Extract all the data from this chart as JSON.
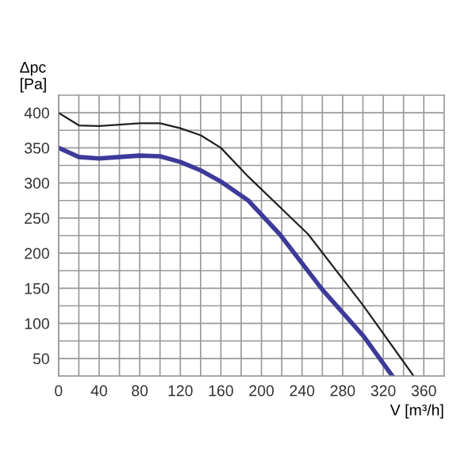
{
  "chart_data": {
    "type": "line",
    "ylabel": "Δpc\n[Pa]",
    "xlabel": "V [m³/h]",
    "series": [
      {
        "color": "#222222",
        "x": [
          0,
          20,
          40,
          60,
          80,
          100,
          120,
          140,
          160,
          187,
          246,
          300,
          350
        ],
        "values": [
          400,
          382,
          381,
          383,
          385,
          385,
          378,
          368,
          350,
          309,
          227,
          126,
          25
        ]
      },
      {
        "color": "#3d3a9a",
        "x": [
          0,
          20,
          40,
          60,
          80,
          100,
          120,
          140,
          160,
          187,
          218,
          260,
          301,
          329
        ],
        "values": [
          350,
          337,
          335,
          337,
          339,
          338,
          330,
          318,
          302,
          275,
          227,
          148,
          81,
          25
        ]
      }
    ],
    "xlim": [
      0,
      380
    ],
    "ylim": [
      25,
      425
    ],
    "xticks": [
      0,
      {
        "value": 20,
        "label": null
      },
      40,
      {
        "value": 60,
        "label": null
      },
      80,
      {
        "value": 100,
        "label": null
      },
      120,
      {
        "value": 140,
        "label": null
      },
      160,
      {
        "value": 180,
        "label": null
      },
      200,
      {
        "value": 220,
        "label": null
      },
      240,
      {
        "value": 260,
        "label": null
      },
      280,
      {
        "value": 300,
        "label": null
      },
      320,
      {
        "value": 340,
        "label": null
      },
      360
    ],
    "yticks": [
      {
        "value": 25,
        "label": null
      },
      50,
      {
        "value": 75,
        "label": null
      },
      100,
      {
        "value": 125,
        "label": null
      },
      150,
      {
        "value": 175,
        "label": null
      },
      200,
      {
        "value": 225,
        "label": null
      },
      250,
      {
        "value": 275,
        "label": null
      },
      300,
      {
        "value": 325,
        "label": null
      },
      350,
      {
        "value": 375,
        "label": null
      },
      400
    ],
    "grid": true,
    "legend": false
  }
}
